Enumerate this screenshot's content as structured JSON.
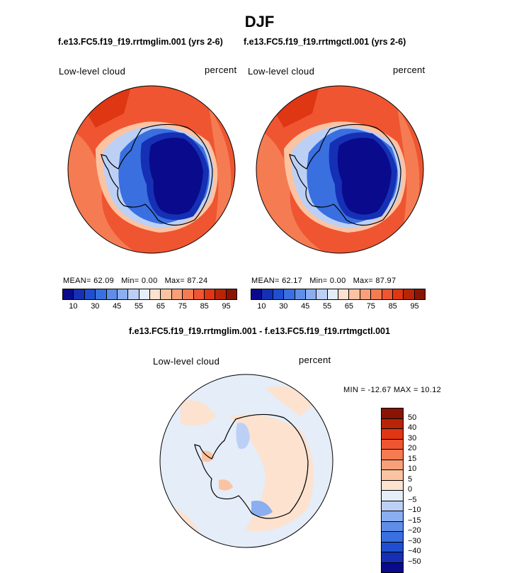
{
  "figure": {
    "title": "DJF",
    "case_left": "f.e13.FC5.f19_f19.rrtmglim.001 (yrs 2-6)",
    "case_right": "f.e13.FC5.f19_f19.rrtmgctl.001 (yrs 2-6)",
    "diff_title": "f.e13.FC5.f19_f19.rrtmglim.001 - f.e13.FC5.f19_f19.rrtmgctl.001"
  },
  "panels": [
    {
      "id": "left",
      "variable": "Low-level cloud",
      "units": "percent",
      "mean_label": "MEAN=",
      "mean": "62.09",
      "min_label": "Min=",
      "min": "0.00",
      "max_label": "Max=",
      "max": "87.24"
    },
    {
      "id": "right",
      "variable": "Low-level cloud",
      "units": "percent",
      "mean_label": "MEAN=",
      "mean": "62.17",
      "min_label": "Min=",
      "min": "0.00",
      "max_label": "Max=",
      "max": "87.97"
    }
  ],
  "diff_panel": {
    "variable": "Low-level cloud",
    "units": "percent",
    "stats": "MIN = -12.67 MAX =  10.12"
  },
  "colorbar_main": {
    "colors": [
      "#0a0a8c",
      "#1530b4",
      "#1f4fd0",
      "#3a6fe0",
      "#5f8ee8",
      "#8aaef0",
      "#bcd0f6",
      "#e4edf8",
      "#fde2cf",
      "#fcc3a2",
      "#f9a07a",
      "#f57b52",
      "#ef5531",
      "#df3614",
      "#b82406",
      "#8a1403"
    ],
    "tick_labels": [
      "10",
      "30",
      "45",
      "55",
      "65",
      "75",
      "85",
      "95"
    ]
  },
  "colorbar_diff": {
    "colors": [
      "#8a1403",
      "#b82406",
      "#df3614",
      "#ef5531",
      "#f57b52",
      "#f9a07a",
      "#fcc3a2",
      "#fde2cf",
      "#e4edf8",
      "#bcd0f6",
      "#8aaef0",
      "#5f8ee8",
      "#3a6fe0",
      "#1f4fd0",
      "#1530b4",
      "#0a0a8c"
    ],
    "tick_labels": [
      "50",
      "40",
      "30",
      "20",
      "15",
      "10",
      "5",
      "0",
      "−5",
      "−10",
      "−15",
      "−20",
      "−30",
      "−40",
      "−50"
    ]
  },
  "map_colors": {
    "ocean_high": "#ef5531",
    "ocean_mid": "#f57b52",
    "ocean_dark": "#df3614",
    "ice_edge": "#bcd0f6",
    "ice_mid": "#3a6fe0",
    "ice_inner": "#1530b4",
    "ice_core": "#0a0a8c",
    "diff_neutral": "#e4edf8",
    "diff_pos": "#fde2cf",
    "diff_pos2": "#fcc3a2",
    "diff_neg": "#bcd0f6",
    "diff_neg2": "#8aaef0"
  }
}
